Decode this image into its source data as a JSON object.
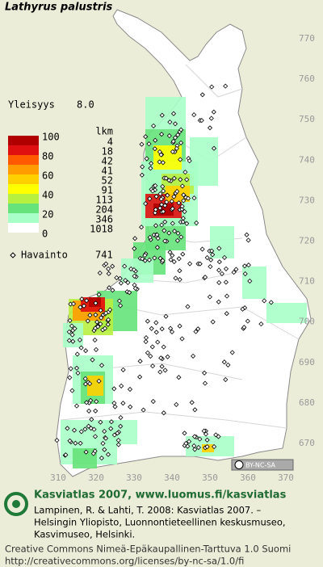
{
  "title": "Lathyrus palustris",
  "frequency": {
    "label": "Yleisyys",
    "value": "8.0"
  },
  "legend": {
    "count_header": "lkm",
    "scale_labels": [
      100,
      80,
      60,
      40,
      20,
      0
    ],
    "bands": [
      {
        "color": "#b00000",
        "count": 4
      },
      {
        "color": "#e01010",
        "count": 18
      },
      {
        "color": "#ff5a00",
        "count": 42
      },
      {
        "color": "#ff9c00",
        "count": 41
      },
      {
        "color": "#ffd000",
        "count": 52
      },
      {
        "color": "#ffff00",
        "count": 91
      },
      {
        "color": "#b8f040",
        "count": 113
      },
      {
        "color": "#66e37a",
        "count": 204
      },
      {
        "color": "#a8ffc8",
        "count": 346
      },
      {
        "color": "#ffffff",
        "count": 1018
      }
    ]
  },
  "observations": {
    "label": "Havainto",
    "count": 741
  },
  "grid": {
    "northing": [
      770,
      760,
      750,
      740,
      730,
      720,
      710,
      700,
      690,
      680,
      670
    ],
    "easting": [
      310,
      320,
      330,
      340,
      350,
      360,
      370
    ]
  },
  "license_badge": "BY-NC-SA",
  "footer": {
    "heading": "Kasviatlas 2007, www.luomus.fi/kasviatlas",
    "citation": [
      "Lampinen, R. & Lahti, T. 2008: Kasviatlas 2007. –",
      "Helsingin Yliopisto, Luonnontieteellinen keskusmuseo,",
      "Kasvimuseo, Helsinki."
    ],
    "license": [
      "Creative Commons Nimeä-Epäkaupallinen-Tarttuva 1.0 Suomi",
      "http://creativecommons.org/licenses/by-nc-sa/1.0/fi"
    ]
  }
}
